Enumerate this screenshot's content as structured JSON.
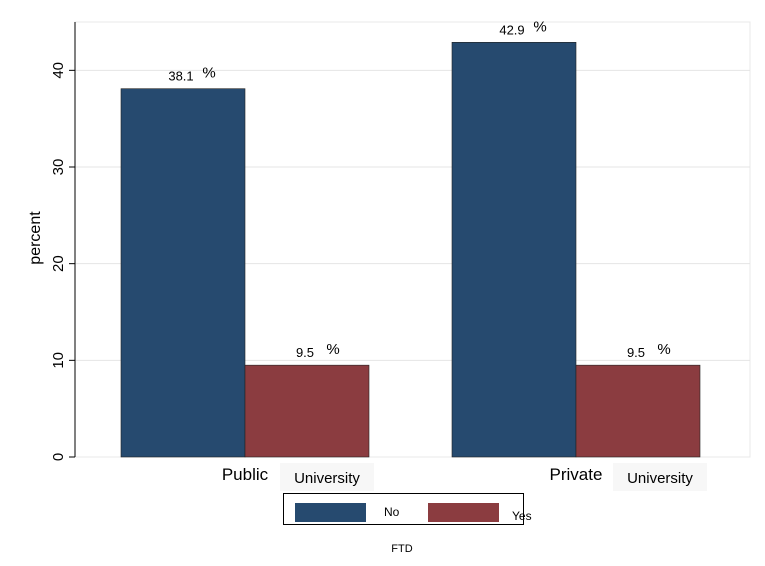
{
  "chart_data": {
    "type": "bar",
    "categories": [
      "Public",
      "Private"
    ],
    "category_suffix_labels": [
      "University",
      "University"
    ],
    "series": [
      {
        "name": "No",
        "values": [
          38.1,
          42.9
        ],
        "color": "#264a6f"
      },
      {
        "name": "Yes",
        "values": [
          9.5,
          9.5
        ],
        "color": "#8b3c40"
      }
    ],
    "value_labels": [
      [
        "38.1",
        "42.9"
      ],
      [
        "9.5",
        "9.5"
      ]
    ],
    "value_suffix": "%",
    "ylabel": "percent",
    "ylim": [
      0,
      45
    ],
    "yticks": [
      0,
      10,
      20,
      30,
      40
    ],
    "grid": true,
    "legend": {
      "title": "FTD",
      "placement": "bottom",
      "entries": [
        "No",
        "Yes"
      ]
    }
  }
}
